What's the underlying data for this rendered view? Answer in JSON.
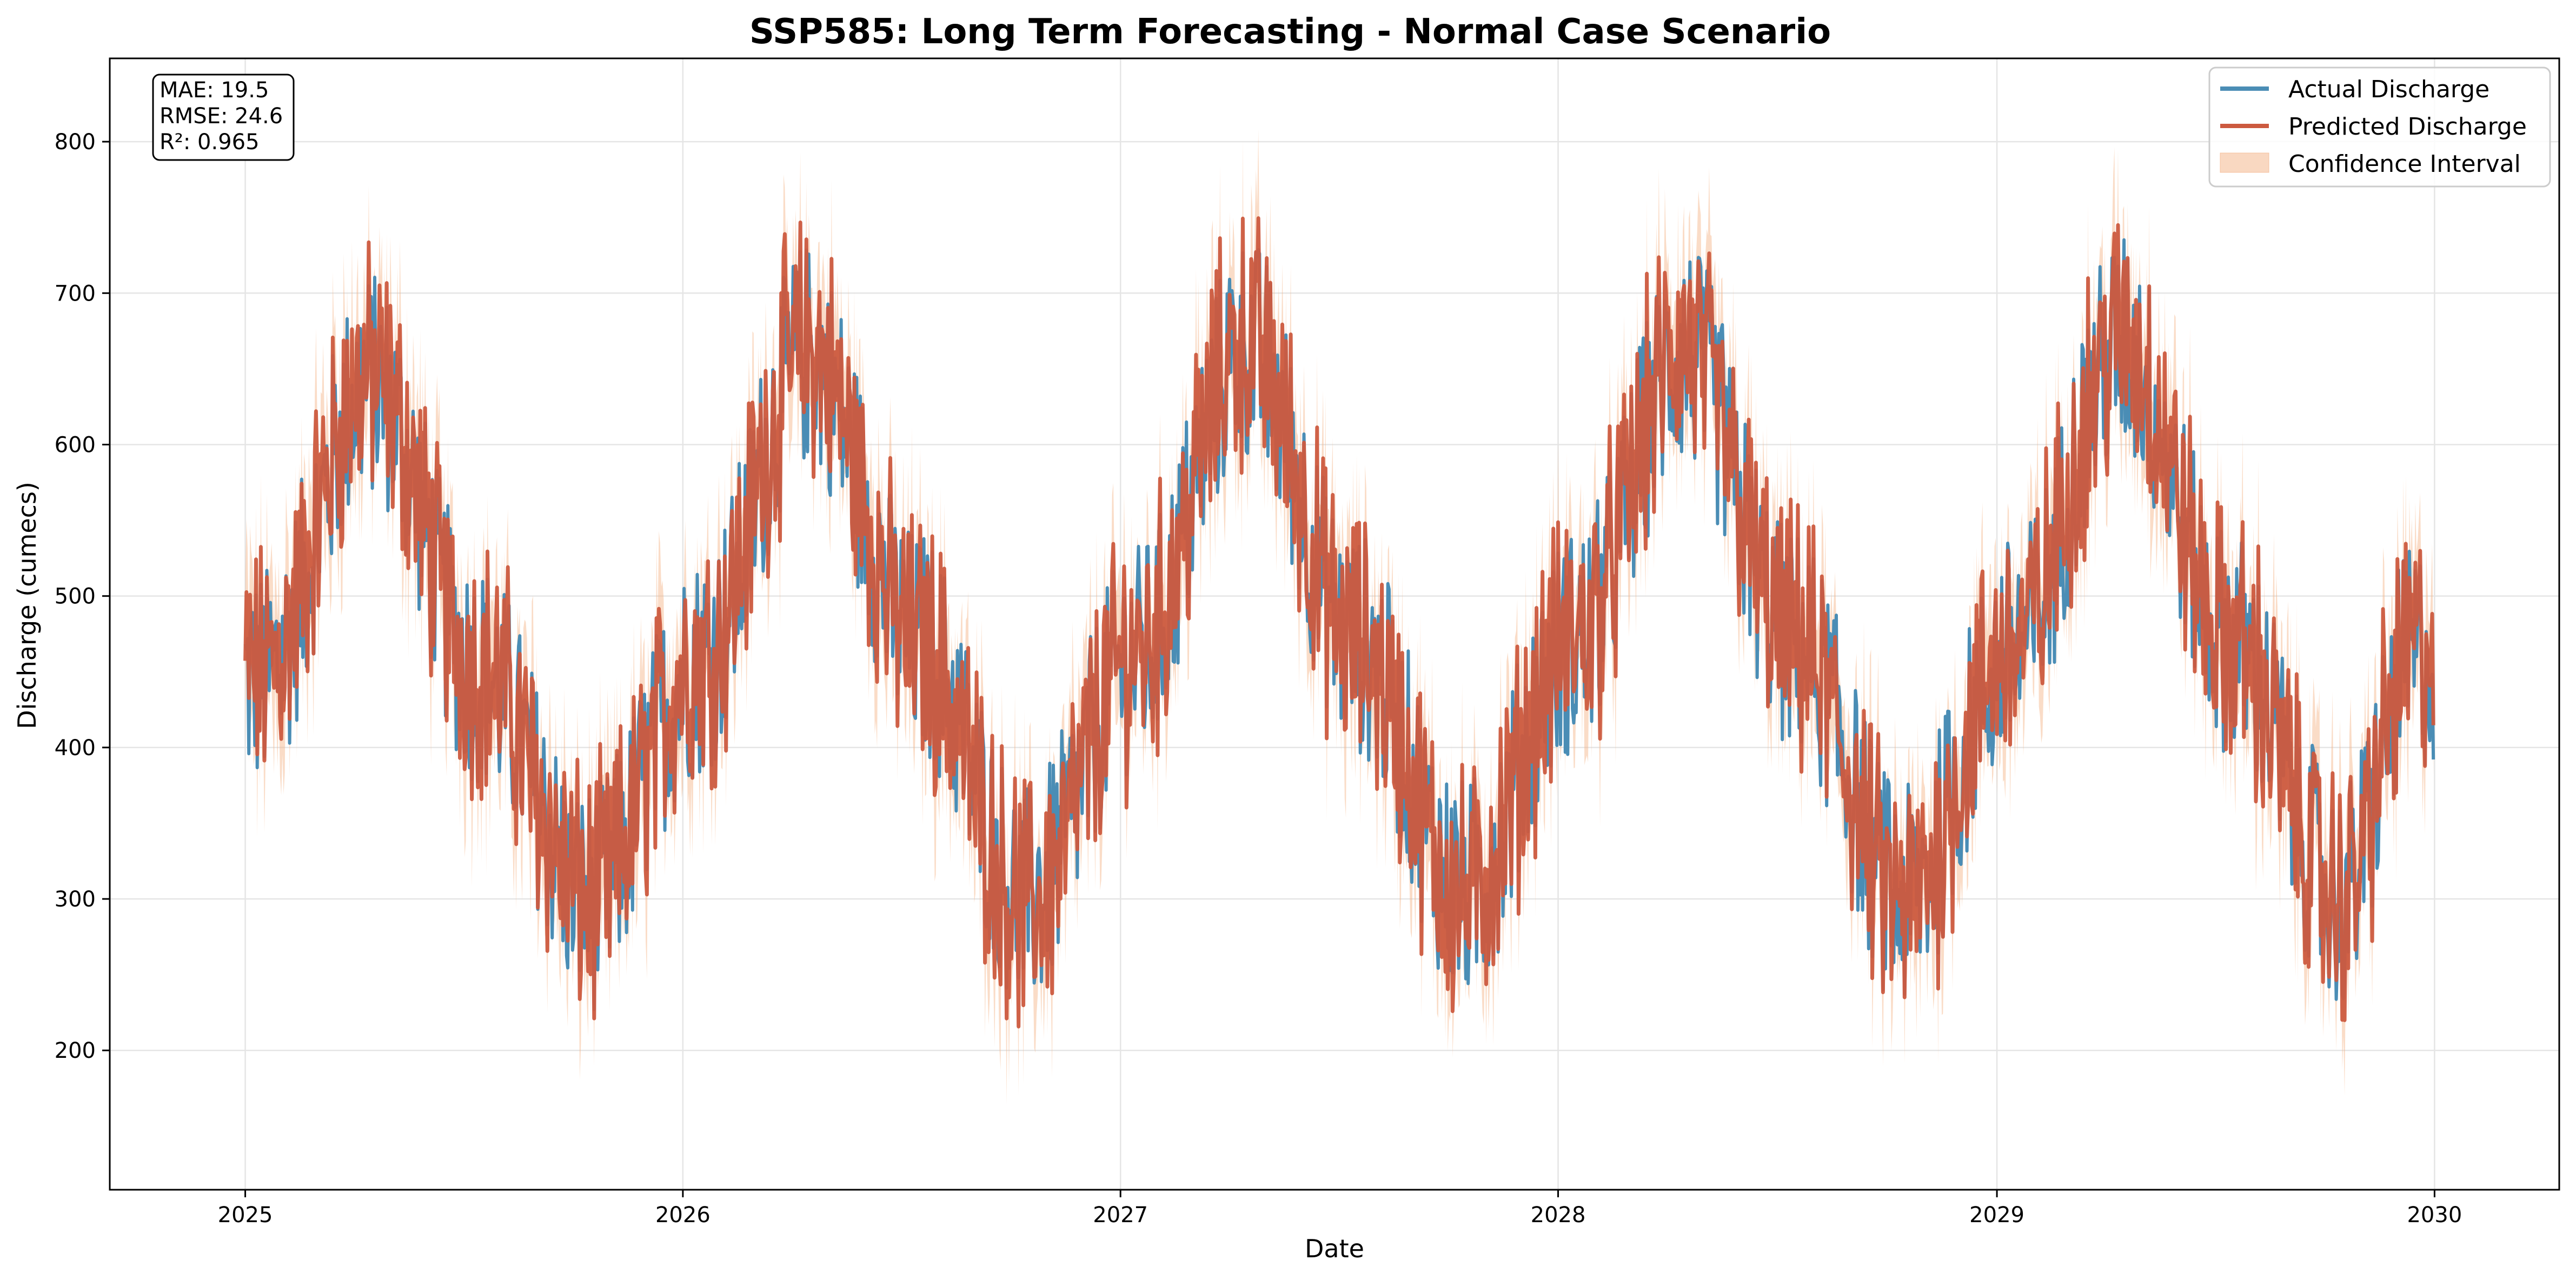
{
  "chart_data": {
    "type": "line",
    "title": "SSP585: Long Term Forecasting - Normal Case Scenario",
    "xlabel": "Date",
    "ylabel": "Discharge (cumecs)",
    "x_tick_labels": [
      "2025",
      "2026",
      "2027",
      "2028",
      "2029",
      "2030"
    ],
    "y_tick_labels": [
      "200",
      "300",
      "400",
      "500",
      "600",
      "700",
      "800"
    ],
    "x_range": [
      "2025-01-01",
      "2029-12-31"
    ],
    "xlim": [
      "2024-09-10",
      "2030-04-15"
    ],
    "ylim": [
      108,
      855
    ],
    "grid": true,
    "legend_position": "top-right",
    "series": [
      {
        "name": "Actual Discharge",
        "color": "#4a8db5",
        "style": "line",
        "x": [
          "2025-01",
          "2025-04",
          "2025-07",
          "2025-10",
          "2026-01",
          "2026-04",
          "2026-07",
          "2026-10",
          "2027-01",
          "2027-04",
          "2027-07",
          "2027-10",
          "2028-01",
          "2028-04",
          "2028-07",
          "2028-10",
          "2029-01",
          "2029-04",
          "2029-07",
          "2029-10",
          "2029-12"
        ],
        "values": [
          445,
          640,
          450,
          300,
          455,
          660,
          470,
          300,
          460,
          665,
          470,
          305,
          470,
          660,
          470,
          300,
          465,
          665,
          470,
          300,
          460
        ]
      },
      {
        "name": "Predicted Discharge",
        "color": "#cc5a3f",
        "style": "line",
        "x": [
          "2025-01",
          "2025-04",
          "2025-07",
          "2025-10",
          "2026-01",
          "2026-04",
          "2026-07",
          "2026-10",
          "2027-01",
          "2027-04",
          "2027-07",
          "2027-10",
          "2028-01",
          "2028-04",
          "2028-07",
          "2028-10",
          "2029-01",
          "2029-04",
          "2029-07",
          "2029-10",
          "2029-12"
        ],
        "values": [
          450,
          645,
          455,
          300,
          460,
          665,
          470,
          295,
          465,
          670,
          470,
          300,
          475,
          665,
          470,
          295,
          470,
          670,
          470,
          300,
          465
        ]
      },
      {
        "name": "Confidence Interval",
        "color": "#f4b183",
        "style": "band",
        "half_width": 45
      }
    ],
    "metrics": {
      "mae": "MAE: 19.5",
      "rmse": "RMSE: 24.6",
      "r2": "R²: 0.965"
    }
  }
}
